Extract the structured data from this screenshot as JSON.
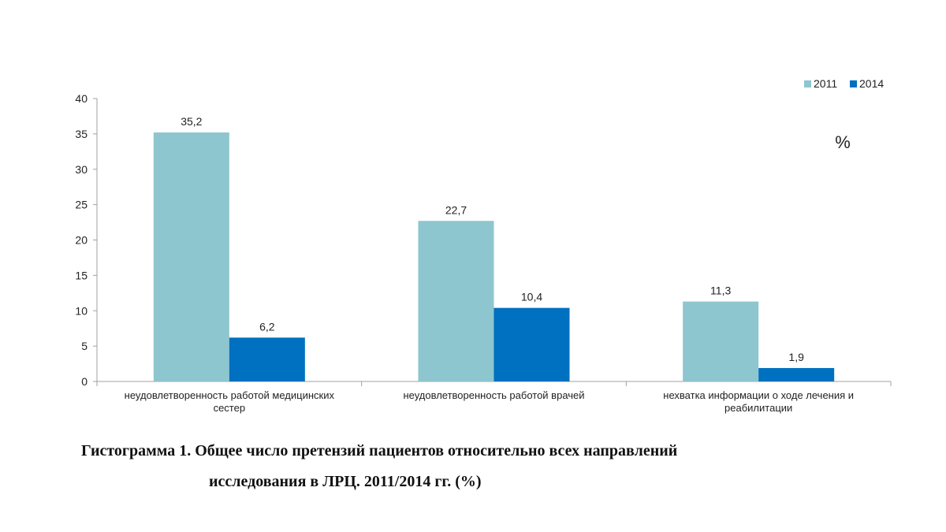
{
  "chart_data": {
    "type": "bar",
    "unit_label": "%",
    "categories": [
      [
        "неудовлетворенность  работой медицинских",
        "сестер"
      ],
      [
        "неудовлетворенность  работой врачей"
      ],
      [
        "нехватка  информации  о ходе лечения  и",
        "реабилитации"
      ]
    ],
    "series": [
      {
        "name": "2011",
        "color": "#8dc6cf",
        "values": [
          35.2,
          22.7,
          11.3
        ],
        "labels": [
          "35,2",
          "22,7",
          "11,3"
        ]
      },
      {
        "name": "2014",
        "color": "#0070c0",
        "values": [
          6.2,
          10.4,
          1.9
        ],
        "labels": [
          "6,2",
          "10,4",
          "1,9"
        ]
      }
    ],
    "ylim": [
      0,
      40
    ],
    "yticks": [
      0,
      5,
      10,
      15,
      20,
      25,
      30,
      35,
      40
    ],
    "legend_position": "top-right",
    "grid": false
  },
  "caption": {
    "line1": "Гистограмма 1. Общее число претензий пациентов относительно  всех направлений",
    "line2": "исследования в ЛРЦ.  2011/2014 гг.  (%)"
  }
}
